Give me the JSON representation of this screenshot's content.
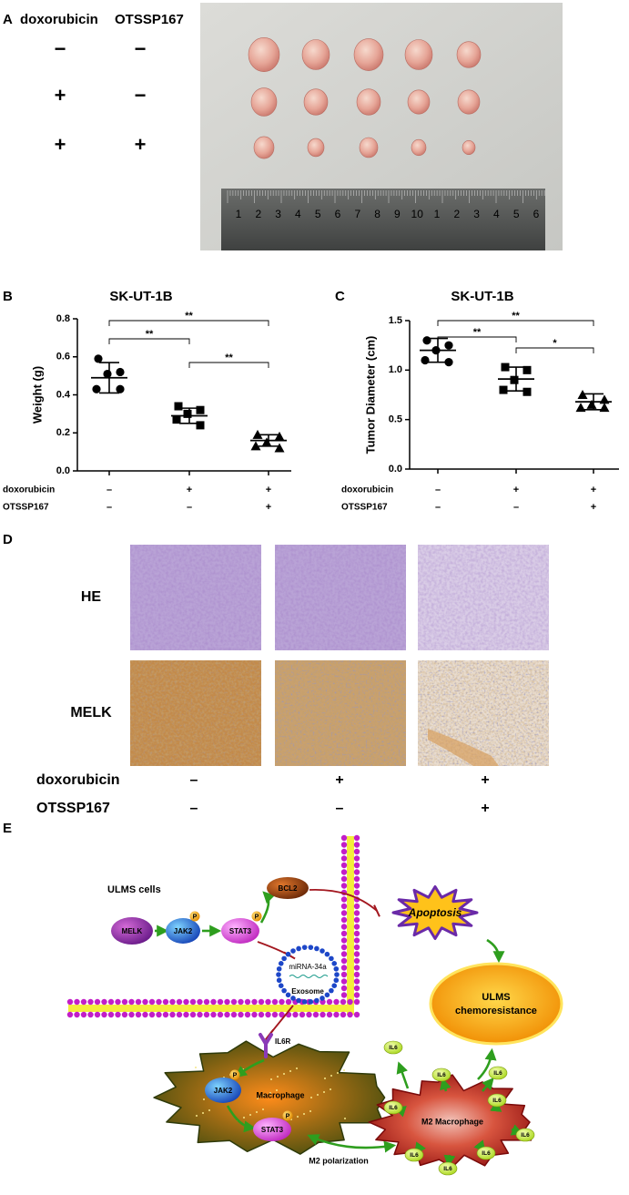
{
  "panel_a": {
    "label": "A",
    "conditions": [
      {
        "name": "doxorubicin",
        "signs": [
          "−",
          "+",
          "+"
        ]
      },
      {
        "name": "OTSSP167",
        "signs": [
          "−",
          "−",
          "+"
        ]
      }
    ],
    "ruler": [
      "1",
      "2",
      "3",
      "4",
      "5",
      "6",
      "7",
      "8",
      "9",
      "10",
      "1",
      "2",
      "3",
      "4",
      "5",
      "6"
    ]
  },
  "chart_data": [
    {
      "type": "dotplot",
      "panel": "B",
      "title": "SK-UT-1B",
      "ylabel": "Weight (g)",
      "ylim": [
        0,
        0.8
      ],
      "yticks": [
        {
          "value": 0,
          "label": "0.0"
        },
        0.2,
        0.4,
        0.6,
        0.8
      ],
      "color": "#000000",
      "groups": [
        {
          "marker": "circle",
          "values": [
            0.59,
            0.52,
            0.51,
            0.43,
            0.43
          ],
          "mean": 0.49,
          "sd": 0.08
        },
        {
          "marker": "square",
          "values": [
            0.34,
            0.32,
            0.3,
            0.27,
            0.24
          ],
          "mean": 0.29,
          "sd": 0.04
        },
        {
          "marker": "triangle",
          "values": [
            0.19,
            0.18,
            0.15,
            0.13,
            0.12
          ],
          "mean": 0.16,
          "sd": 0.03
        }
      ],
      "significance": [
        "**",
        "**",
        "**"
      ],
      "conditions": [
        {
          "name": "doxorubicin",
          "signs": [
            "–",
            "+",
            "+"
          ]
        },
        {
          "name": "OTSSP167",
          "signs": [
            "–",
            "–",
            "+"
          ]
        }
      ]
    },
    {
      "type": "dotplot",
      "panel": "C",
      "title": "SK-UT-1B",
      "ylabel": "Tumor Diameter (cm)",
      "ylim": [
        0,
        1.5
      ],
      "yticks": [
        {
          "value": 0,
          "label": "0.0"
        },
        0.5,
        {
          "value": 1,
          "label": "1.0"
        },
        1.5
      ],
      "color": "#000000",
      "groups": [
        {
          "marker": "circle",
          "values": [
            1.3,
            1.25,
            1.2,
            1.1,
            1.08
          ],
          "mean": 1.2,
          "sd": 0.12
        },
        {
          "marker": "square",
          "values": [
            1.03,
            1.0,
            0.9,
            0.8,
            0.78
          ],
          "mean": 0.91,
          "sd": 0.12
        },
        {
          "marker": "triangle",
          "values": [
            0.75,
            0.7,
            0.65,
            0.62,
            0.62
          ],
          "mean": 0.68,
          "sd": 0.08
        }
      ],
      "significance": [
        "**",
        "**",
        "*"
      ],
      "conditions": [
        {
          "name": "doxorubicin",
          "signs": [
            "–",
            "+",
            "+"
          ]
        },
        {
          "name": "OTSSP167",
          "signs": [
            "–",
            "–",
            "+"
          ]
        }
      ]
    }
  ],
  "panel_d": {
    "label": "D",
    "rows": [
      "HE",
      "MELK"
    ],
    "conditions": [
      {
        "name": "doxorubicin",
        "signs": [
          "–",
          "+",
          "+"
        ]
      },
      {
        "name": "OTSSP167",
        "signs": [
          "–",
          "–",
          "+"
        ]
      }
    ]
  },
  "panel_e": {
    "label": "E",
    "cells_label": "ULMS cells",
    "melk": "MELK",
    "jak2": "JAK2",
    "stat3": "STAT3",
    "bcl2": "BCL2",
    "apoptosis": "Apoptosis",
    "mirna": "miRNA-34a",
    "exosome": "Exosome",
    "chemoresistance": [
      "ULMS",
      "chemoresistance"
    ],
    "il6r": "IL6R",
    "macrophage_jak2": "JAK2",
    "macrophage": "Macrophage",
    "macrophage_stat3": "STAT3",
    "m2_polarization": "M2 polarization",
    "m2_macrophage": "M2 Macrophage",
    "phospho": [
      "P",
      "P",
      "P",
      "P"
    ],
    "il6": [
      "IL6",
      "IL6",
      "IL6",
      "IL6",
      "IL6",
      "IL6",
      "IL6",
      "IL6",
      "IL6"
    ]
  }
}
